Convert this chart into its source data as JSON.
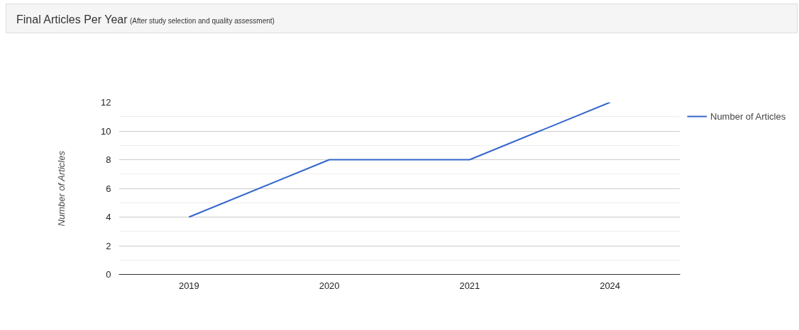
{
  "chart_data": {
    "type": "line",
    "title": "Final Articles Per Year",
    "subtitle": "(After study selection and quality assessment)",
    "ylabel": "Number of Articles",
    "categories": [
      "2019",
      "2020",
      "2021",
      "2024"
    ],
    "series": [
      {
        "name": "Number of Articles",
        "color": "#3366cc",
        "values": [
          4,
          8,
          8,
          12
        ]
      }
    ],
    "ylim": [
      0,
      12
    ],
    "yticks": [
      0,
      2,
      4,
      6,
      8,
      10,
      12
    ],
    "grid": "y",
    "legend": "top right",
    "marker": "none",
    "line_style": "solid"
  }
}
